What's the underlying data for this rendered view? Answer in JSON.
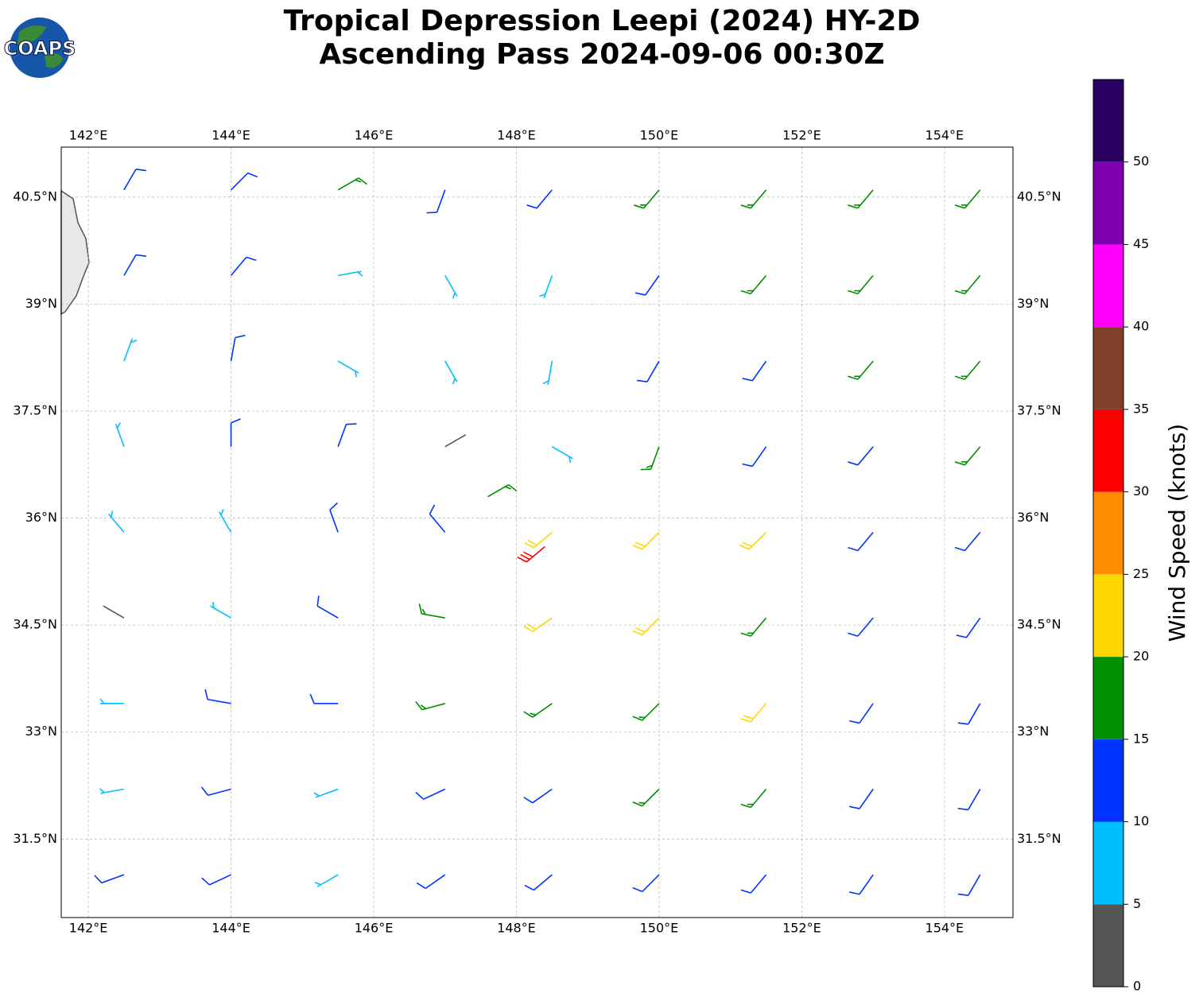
{
  "chart_data": {
    "type": "wind-barbs",
    "title": [
      "Tropical Depression Leepi (2024) HY-2D",
      "Ascending Pass 2024-09-06 00:30Z"
    ],
    "logo": "COAPS",
    "xlim": [
      141.62,
      154.96
    ],
    "ylim": [
      30.4,
      41.2
    ],
    "xticks": [
      {
        "value": 142,
        "label": "142°E"
      },
      {
        "value": 144,
        "label": "144°E"
      },
      {
        "value": 146,
        "label": "146°E"
      },
      {
        "value": 148,
        "label": "148°E"
      },
      {
        "value": 150,
        "label": "150°E"
      },
      {
        "value": 152,
        "label": "152°E"
      },
      {
        "value": 154,
        "label": "154°E"
      }
    ],
    "yticks": [
      {
        "value": 31.5,
        "label": "31.5°N"
      },
      {
        "value": 33,
        "label": "33°N"
      },
      {
        "value": 34.5,
        "label": "34.5°N"
      },
      {
        "value": 36,
        "label": "36°N"
      },
      {
        "value": 37.5,
        "label": "37.5°N"
      },
      {
        "value": 39,
        "label": "39°N"
      },
      {
        "value": 40.5,
        "label": "40.5°N"
      }
    ],
    "grid": true,
    "colorbar": {
      "label": "Wind Speed (knots)",
      "lim": [
        0,
        55
      ],
      "ticks": [
        0,
        5,
        10,
        15,
        20,
        25,
        30,
        35,
        40,
        45,
        50
      ],
      "bounds": [
        0,
        5,
        10,
        15,
        20,
        25,
        30,
        35,
        40,
        45,
        50,
        55
      ],
      "colors": [
        "#555555",
        "#00bfff",
        "#0033ff",
        "#009000",
        "#ffd700",
        "#ff8c00",
        "#ff0000",
        "#7f3f2a",
        "#ff00ff",
        "#8000b0",
        "#2a0060"
      ]
    },
    "barbs": {
      "lon": [
        142.5,
        144,
        145.5,
        147,
        148.5,
        150,
        151.5,
        153,
        154.5,
        142.5,
        144,
        145.5,
        147,
        148.5,
        150,
        151.5,
        153,
        154.5,
        142.5,
        144,
        145.5,
        147,
        148.5,
        150,
        151.5,
        153,
        154.5,
        142.5,
        144,
        145.5,
        147,
        148.5,
        150,
        151.5,
        153,
        154.5,
        142.5,
        144,
        145.5,
        147,
        148.5,
        150,
        151.5,
        153,
        154.5,
        142.5,
        144,
        145.5,
        147,
        148.5,
        150,
        151.5,
        153,
        154.5,
        142.5,
        144,
        145.5,
        147,
        148.5,
        150,
        151.5,
        153,
        154.5,
        142.5,
        144,
        145.5,
        147,
        148.5,
        150,
        151.5,
        153,
        154.5,
        142.5,
        144,
        145.5,
        147,
        148.5,
        150,
        151.5,
        153,
        154.5,
        148.4,
        147.6
      ],
      "lat": [
        40.6,
        40.6,
        40.6,
        40.6,
        40.6,
        40.6,
        40.6,
        40.6,
        40.6,
        39.4,
        39.4,
        39.4,
        39.4,
        39.4,
        39.4,
        39.4,
        39.4,
        39.4,
        38.2,
        38.2,
        38.2,
        38.2,
        38.2,
        38.2,
        38.2,
        38.2,
        38.2,
        37,
        37,
        37,
        37,
        37,
        37,
        37,
        37,
        37,
        35.8,
        35.8,
        35.8,
        35.8,
        35.8,
        35.8,
        35.8,
        35.8,
        35.8,
        34.6,
        34.6,
        34.6,
        34.6,
        34.6,
        34.6,
        34.6,
        34.6,
        34.6,
        33.4,
        33.4,
        33.4,
        33.4,
        33.4,
        33.4,
        33.4,
        33.4,
        33.4,
        32.2,
        32.2,
        32.2,
        32.2,
        32.2,
        32.2,
        32.2,
        32.2,
        32.2,
        31,
        31,
        31,
        31,
        31,
        31,
        31,
        31,
        31,
        35.6,
        36.3
      ],
      "speed": [
        12,
        12,
        17,
        12,
        11,
        16,
        17,
        16,
        17,
        11,
        12,
        9,
        8,
        9,
        12,
        16,
        16,
        17,
        8,
        11,
        8,
        7,
        8,
        12,
        14,
        15,
        17,
        8,
        12,
        11,
        3,
        9,
        17,
        14,
        13,
        16,
        8,
        9,
        12,
        13,
        22,
        22,
        22,
        14,
        13,
        3,
        8,
        12,
        17,
        24,
        23,
        18,
        14,
        12,
        7,
        12,
        11,
        17,
        18,
        17,
        22,
        14,
        12,
        8,
        11,
        8,
        12,
        14,
        18,
        17,
        12,
        11,
        10,
        12,
        8,
        10,
        12,
        13,
        12,
        12,
        10,
        32,
        17
      ],
      "direction": [
        30,
        45,
        60,
        200,
        220,
        220,
        220,
        220,
        220,
        30,
        40,
        80,
        150,
        200,
        215,
        220,
        220,
        220,
        20,
        10,
        120,
        150,
        190,
        210,
        215,
        220,
        220,
        340,
        0,
        20,
        60,
        120,
        200,
        215,
        220,
        220,
        320,
        330,
        340,
        320,
        230,
        225,
        225,
        220,
        220,
        300,
        300,
        300,
        280,
        235,
        225,
        220,
        220,
        215,
        270,
        280,
        270,
        255,
        235,
        225,
        220,
        215,
        210,
        260,
        255,
        250,
        245,
        235,
        225,
        220,
        215,
        210,
        250,
        245,
        240,
        235,
        230,
        225,
        220,
        215,
        210,
        230,
        60
      ]
    }
  }
}
